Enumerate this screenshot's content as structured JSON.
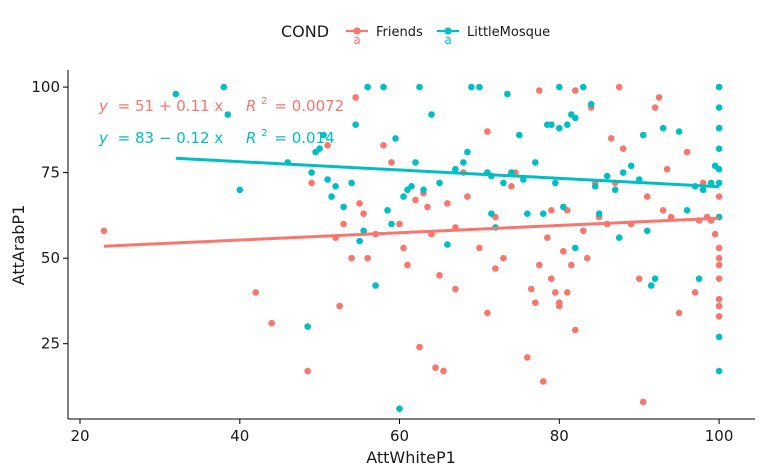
{
  "chart_data": {
    "type": "scatter",
    "xlabel": "AttWhiteP1",
    "ylabel": "AttArabP1",
    "xlim": [
      18.5,
      104.5
    ],
    "ylim": [
      3,
      105
    ],
    "xticks": [
      20,
      40,
      60,
      80,
      100
    ],
    "yticks": [
      25,
      50,
      75,
      100
    ],
    "grid": false,
    "legend": {
      "title": "COND",
      "placement": "top",
      "glyph": "a"
    },
    "series": [
      {
        "name": "Friends",
        "color": "#F8766D",
        "equation": {
          "lhs": "y",
          "rhs": "= 51 + 0.11 x",
          "r2_label": "R",
          "r2_sup": "2",
          "r2_value": "= 0.0072"
        },
        "fit": {
          "x": [
            23,
            100
          ],
          "y": [
            53.5,
            61.7
          ]
        },
        "points": [
          [
            23,
            58
          ],
          [
            42,
            40
          ],
          [
            44,
            31
          ],
          [
            48.5,
            17
          ],
          [
            49,
            72
          ],
          [
            51,
            83
          ],
          [
            52,
            56
          ],
          [
            52.5,
            36
          ],
          [
            53,
            60
          ],
          [
            54,
            50
          ],
          [
            54.5,
            97
          ],
          [
            55,
            66
          ],
          [
            55.5,
            63
          ],
          [
            56,
            50
          ],
          [
            57,
            57
          ],
          [
            58,
            83
          ],
          [
            59,
            78
          ],
          [
            60,
            60
          ],
          [
            60.5,
            53
          ],
          [
            61,
            48
          ],
          [
            62,
            67
          ],
          [
            62.5,
            24
          ],
          [
            63,
            69
          ],
          [
            63.5,
            65
          ],
          [
            64,
            57
          ],
          [
            64.5,
            18
          ],
          [
            65,
            45
          ],
          [
            65.5,
            17
          ],
          [
            66,
            66
          ],
          [
            67,
            41
          ],
          [
            67,
            59
          ],
          [
            68,
            75
          ],
          [
            68.5,
            68
          ],
          [
            70,
            53
          ],
          [
            71,
            34
          ],
          [
            71,
            87
          ],
          [
            72,
            47
          ],
          [
            72,
            62
          ],
          [
            73,
            50
          ],
          [
            74,
            71
          ],
          [
            74.5,
            75
          ],
          [
            76,
            21
          ],
          [
            76.5,
            41
          ],
          [
            77,
            37
          ],
          [
            77.5,
            48
          ],
          [
            77.5,
            99
          ],
          [
            78,
            14
          ],
          [
            78.5,
            56
          ],
          [
            79,
            44
          ],
          [
            79,
            64
          ],
          [
            79.5,
            40
          ],
          [
            80,
            37
          ],
          [
            80,
            36
          ],
          [
            80.5,
            52
          ],
          [
            81,
            40
          ],
          [
            81,
            64
          ],
          [
            81.5,
            48
          ],
          [
            82,
            29
          ],
          [
            82,
            99
          ],
          [
            83,
            58
          ],
          [
            83.5,
            50
          ],
          [
            84,
            94
          ],
          [
            84.5,
            72
          ],
          [
            85,
            62
          ],
          [
            86,
            60
          ],
          [
            86.5,
            85
          ],
          [
            87,
            72
          ],
          [
            87.5,
            100
          ],
          [
            88,
            82
          ],
          [
            89,
            60
          ],
          [
            90,
            44
          ],
          [
            90.5,
            8
          ],
          [
            91,
            68
          ],
          [
            92,
            94
          ],
          [
            92.5,
            97
          ],
          [
            93,
            64
          ],
          [
            93.5,
            76
          ],
          [
            94,
            62
          ],
          [
            95,
            34
          ],
          [
            96,
            81
          ],
          [
            97,
            40
          ],
          [
            97.5,
            61
          ],
          [
            98,
            72
          ],
          [
            98.5,
            62
          ],
          [
            99,
            61
          ],
          [
            99.5,
            57
          ],
          [
            100,
            62
          ],
          [
            100,
            53
          ],
          [
            100,
            50
          ],
          [
            100,
            48
          ],
          [
            100,
            44
          ],
          [
            100,
            38
          ],
          [
            100,
            36
          ],
          [
            100,
            33
          ],
          [
            100,
            68
          ],
          [
            100,
            100
          ]
        ]
      },
      {
        "name": "LittleMosque",
        "color": "#00BFC4",
        "equation": {
          "lhs": "y",
          "rhs": "= 83 − 0.12 x",
          "r2_label": "R",
          "r2_sup": "2",
          "r2_value": "= 0.014"
        },
        "fit": {
          "x": [
            32,
            100
          ],
          "y": [
            79.2,
            70.9
          ]
        },
        "points": [
          [
            32,
            98
          ],
          [
            38,
            100
          ],
          [
            38.5,
            92
          ],
          [
            40,
            70
          ],
          [
            46,
            78
          ],
          [
            48.5,
            30
          ],
          [
            49,
            75
          ],
          [
            49.5,
            81
          ],
          [
            50,
            82
          ],
          [
            50.5,
            86
          ],
          [
            51,
            73
          ],
          [
            51.5,
            68
          ],
          [
            52,
            71
          ],
          [
            53,
            65
          ],
          [
            54,
            72
          ],
          [
            54.5,
            89
          ],
          [
            55,
            55
          ],
          [
            55.5,
            58
          ],
          [
            56,
            100
          ],
          [
            57,
            42
          ],
          [
            58,
            100
          ],
          [
            58.5,
            64
          ],
          [
            59,
            60
          ],
          [
            59.5,
            85
          ],
          [
            60,
            6
          ],
          [
            60.5,
            68
          ],
          [
            61,
            70
          ],
          [
            61.5,
            71
          ],
          [
            62,
            78
          ],
          [
            62.5,
            100
          ],
          [
            63,
            70
          ],
          [
            64,
            92
          ],
          [
            65,
            72
          ],
          [
            66,
            54
          ],
          [
            67,
            76
          ],
          [
            68,
            78
          ],
          [
            68.5,
            81
          ],
          [
            69,
            100
          ],
          [
            70,
            100
          ],
          [
            71,
            75
          ],
          [
            71.5,
            74
          ],
          [
            71.5,
            63
          ],
          [
            72,
            59
          ],
          [
            73,
            72
          ],
          [
            73.5,
            98
          ],
          [
            74,
            75
          ],
          [
            75,
            86
          ],
          [
            75.5,
            73
          ],
          [
            76,
            63
          ],
          [
            77,
            78
          ],
          [
            78,
            63
          ],
          [
            78.5,
            89
          ],
          [
            79,
            89
          ],
          [
            79.5,
            72
          ],
          [
            80,
            88
          ],
          [
            80,
            100
          ],
          [
            80.5,
            65
          ],
          [
            81,
            89
          ],
          [
            81.5,
            92
          ],
          [
            82,
            53
          ],
          [
            82,
            91
          ],
          [
            83,
            100
          ],
          [
            84,
            95
          ],
          [
            84.5,
            71
          ],
          [
            85,
            63
          ],
          [
            86,
            74
          ],
          [
            87,
            70
          ],
          [
            87.5,
            56
          ],
          [
            88,
            75
          ],
          [
            89,
            77
          ],
          [
            90,
            73
          ],
          [
            90.5,
            86
          ],
          [
            91,
            58
          ],
          [
            91.5,
            42
          ],
          [
            92,
            44
          ],
          [
            93,
            88
          ],
          [
            95,
            87
          ],
          [
            96,
            64
          ],
          [
            97,
            71
          ],
          [
            97.5,
            44
          ],
          [
            98,
            70
          ],
          [
            99,
            72
          ],
          [
            99.5,
            77
          ],
          [
            100,
            100
          ],
          [
            100,
            94
          ],
          [
            100,
            88
          ],
          [
            100,
            82
          ],
          [
            100,
            76
          ],
          [
            100,
            72
          ],
          [
            100,
            62
          ],
          [
            100,
            27
          ],
          [
            100,
            17
          ]
        ]
      }
    ]
  }
}
